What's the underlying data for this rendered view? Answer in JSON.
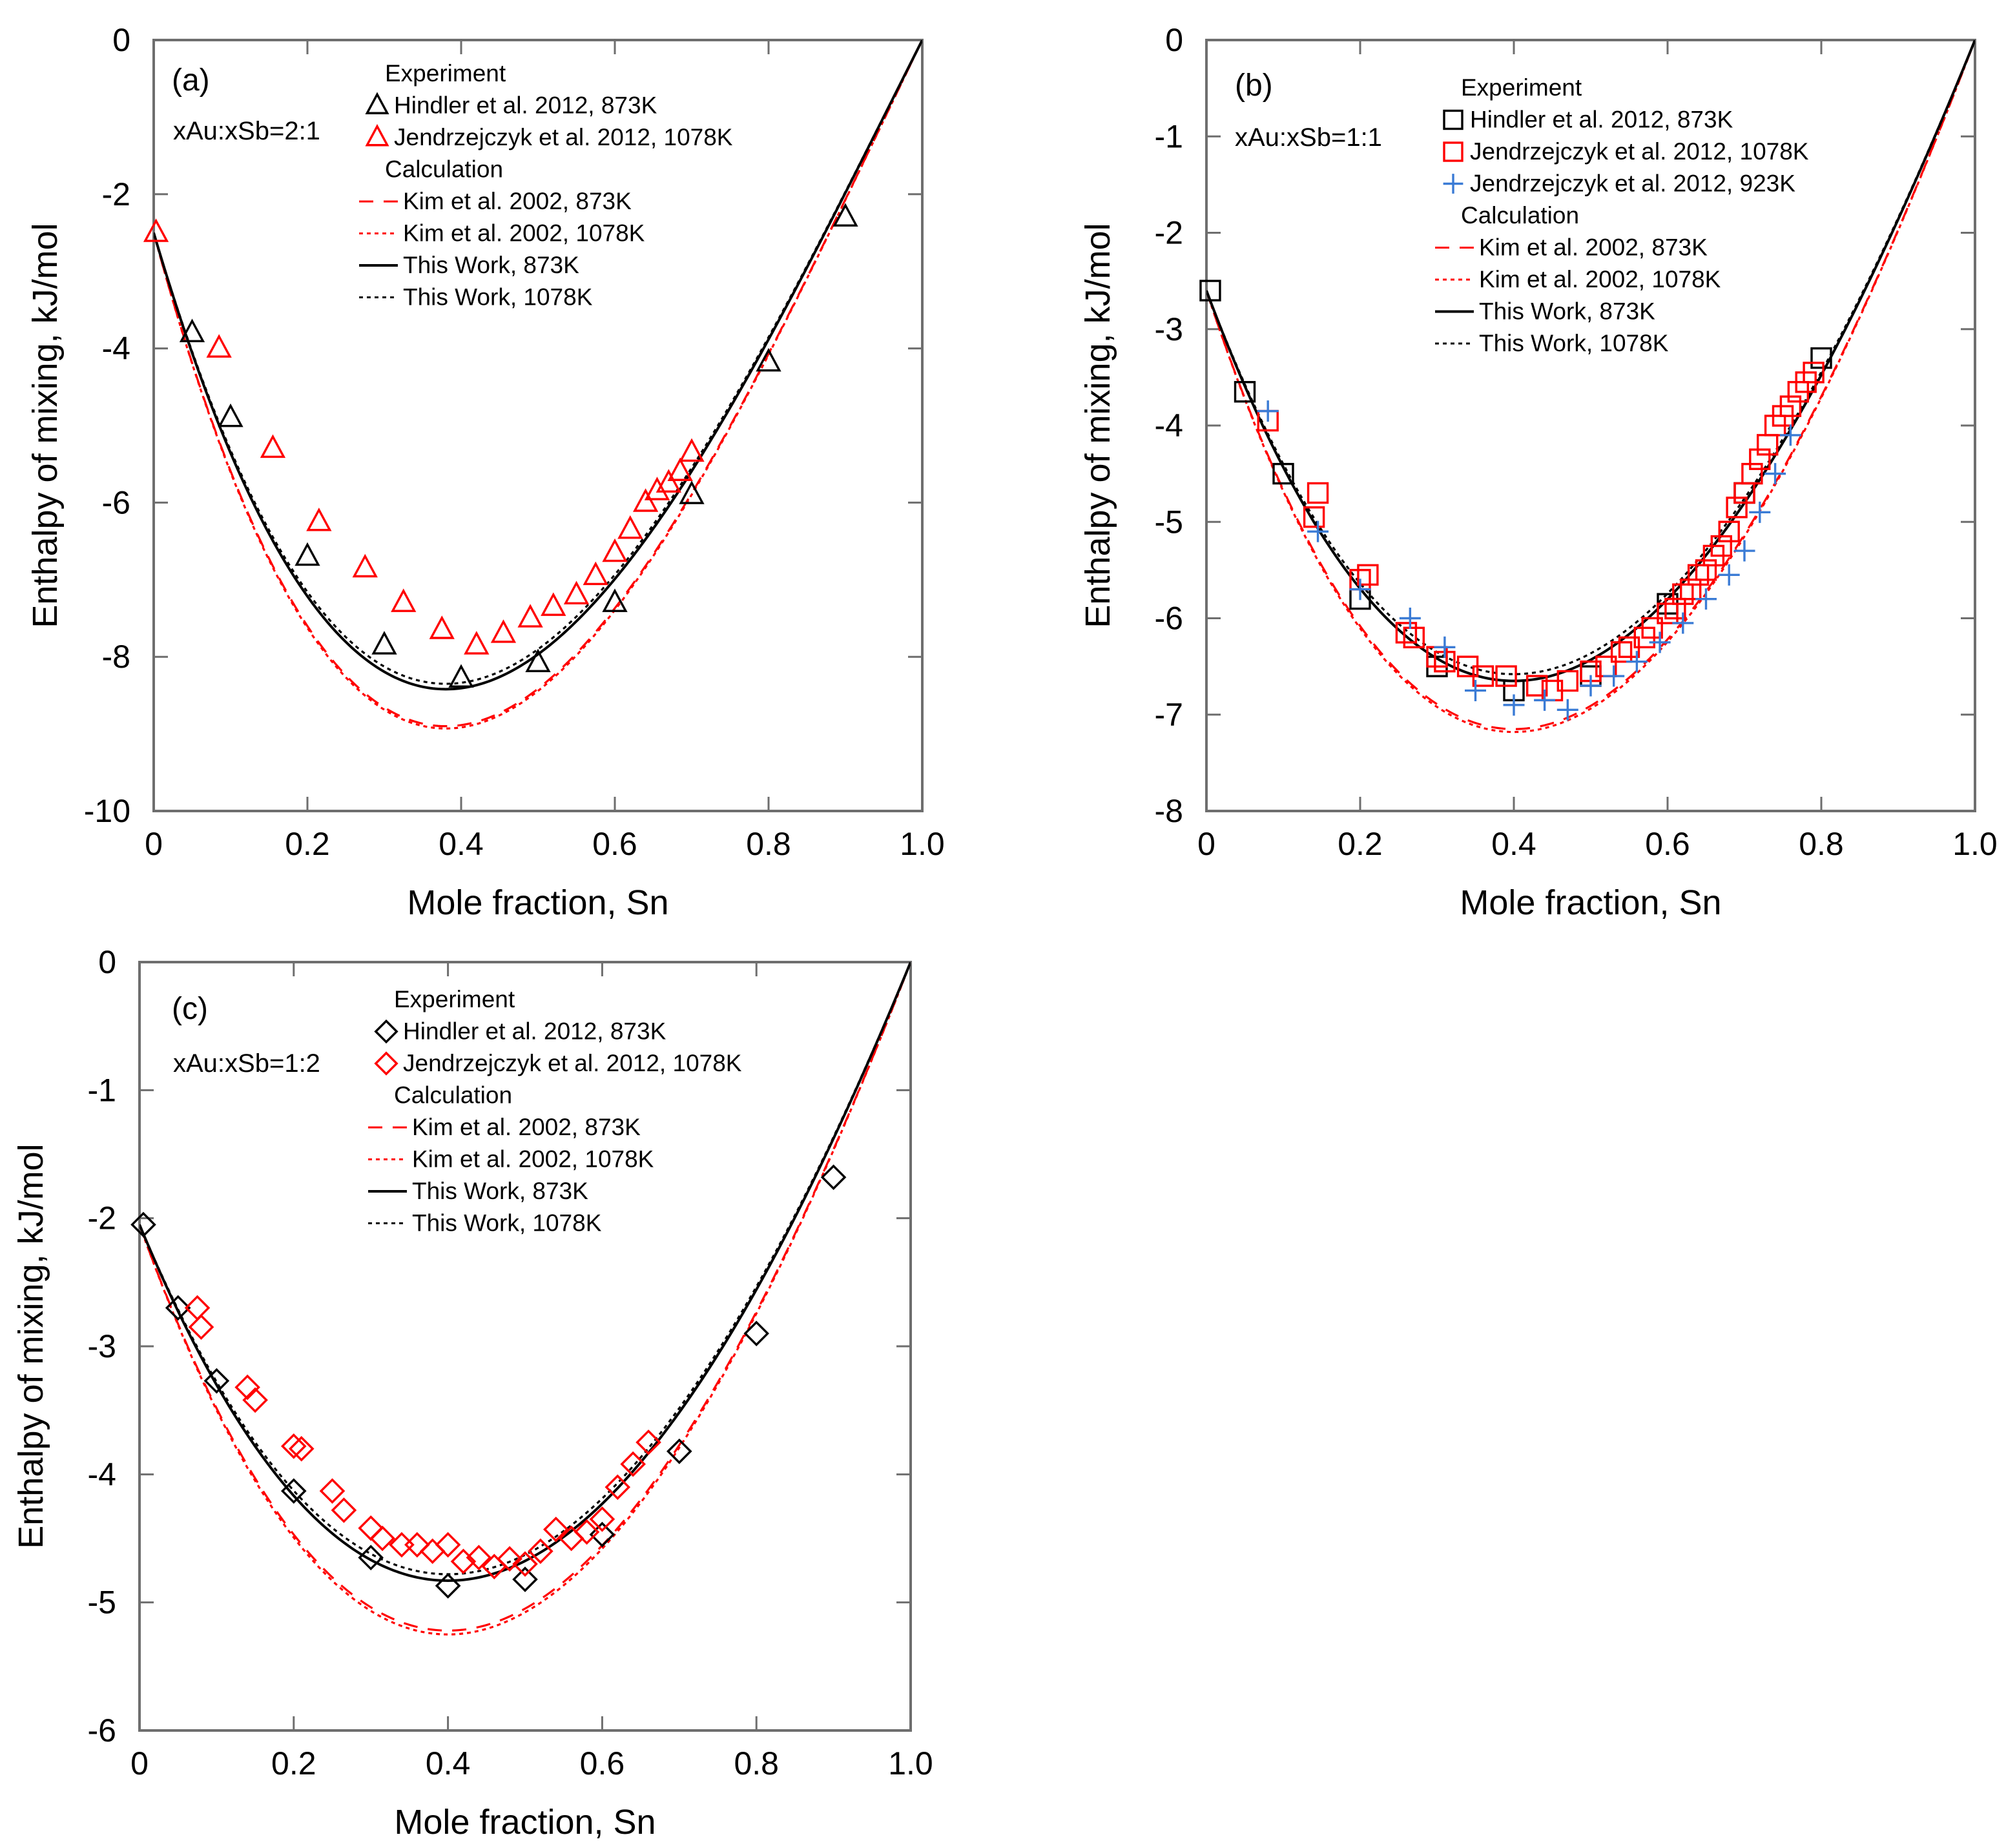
{
  "chart_data": [
    {
      "type": "scatter",
      "panel": "(a)",
      "ratio": "xAu:xSb=2:1",
      "xlabel": "Mole fraction, Sn",
      "ylabel": "Enthalpy of mixing, kJ/mol",
      "xlim": [
        0,
        1.0
      ],
      "ylim": [
        -10,
        0
      ],
      "xticks": [
        0,
        0.2,
        0.4,
        0.6,
        0.8,
        1.0
      ],
      "xtick_labels": [
        "0",
        "0.2",
        "0.4",
        "0.6",
        "0.8",
        "1.0"
      ],
      "yticks": [
        0,
        -2,
        -4,
        -6,
        -8,
        -10
      ],
      "ytick_labels": [
        "0",
        "-2",
        "-4",
        "-6",
        "-8",
        "-10"
      ],
      "legend_headers": [
        "Experiment",
        "Calculation"
      ],
      "series": [
        {
          "name": "Hindler et al. 2012, 873K",
          "kind": "points",
          "marker": "triangle",
          "color": "#000000",
          "x": [
            0.05,
            0.1,
            0.2,
            0.3,
            0.4,
            0.5,
            0.6,
            0.7,
            0.8,
            0.9
          ],
          "y": [
            -3.8,
            -4.9,
            -6.7,
            -7.85,
            -8.28,
            -8.08,
            -7.3,
            -5.9,
            -4.18,
            -2.3
          ]
        },
        {
          "name": "Jendrzejczyk et al. 2012, 1078K",
          "kind": "points",
          "marker": "triangle",
          "color": "#ff0000",
          "x": [
            0.003,
            0.085,
            0.155,
            0.215,
            0.275,
            0.325,
            0.375,
            0.42,
            0.455,
            0.49,
            0.52,
            0.55,
            0.575,
            0.6,
            0.62,
            0.64,
            0.655,
            0.67,
            0.685,
            0.7
          ],
          "y": [
            -2.5,
            -4.0,
            -5.3,
            -6.25,
            -6.85,
            -7.3,
            -7.65,
            -7.85,
            -7.7,
            -7.5,
            -7.35,
            -7.2,
            -6.95,
            -6.65,
            -6.35,
            -6.0,
            -5.85,
            -5.75,
            -5.6,
            -5.35
          ]
        },
        {
          "name": "Kim et al. 2002, 873K",
          "kind": "line",
          "style": "dash",
          "color": "#ff0000",
          "h0": -2.5,
          "xmin": 0.38,
          "hmin": -8.9,
          "power": 2.0
        },
        {
          "name": "Kim et al. 2002, 1078K",
          "kind": "line",
          "style": "dot",
          "color": "#ff0000",
          "h0": -2.5,
          "xmin": 0.38,
          "hmin": -8.93,
          "power": 2.0
        },
        {
          "name": "This Work, 873K",
          "kind": "line",
          "style": "solid",
          "color": "#000000",
          "h0": -2.5,
          "xmin": 0.38,
          "hmin": -8.42,
          "power": 2.1
        },
        {
          "name": "This Work, 1078K",
          "kind": "line",
          "style": "dot",
          "color": "#000000",
          "h0": -2.5,
          "xmin": 0.38,
          "hmin": -8.35,
          "power": 2.1
        }
      ]
    },
    {
      "type": "scatter",
      "panel": "(b)",
      "ratio": "xAu:xSb=1:1",
      "xlabel": "Mole fraction, Sn",
      "ylabel": "Enthalpy of mixing, kJ/mol",
      "xlim": [
        0,
        1.0
      ],
      "ylim": [
        -8,
        0
      ],
      "xticks": [
        0,
        0.2,
        0.4,
        0.6,
        0.8,
        1.0
      ],
      "xtick_labels": [
        "0",
        "0.2",
        "0.4",
        "0.6",
        "0.8",
        "1.0"
      ],
      "yticks": [
        0,
        -1,
        -2,
        -3,
        -4,
        -5,
        -6,
        -7,
        -8
      ],
      "ytick_labels": [
        "0",
        "-1",
        "-2",
        "-3",
        "-4",
        "-5",
        "-6",
        "-7",
        "-8"
      ],
      "legend_headers": [
        "Experiment",
        "Calculation"
      ],
      "series": [
        {
          "name": "Hindler et al. 2012, 873K",
          "kind": "points",
          "marker": "square",
          "color": "#000000",
          "x": [
            0.005,
            0.05,
            0.1,
            0.2,
            0.3,
            0.4,
            0.5,
            0.6,
            0.7,
            0.8
          ],
          "y": [
            -2.6,
            -3.65,
            -4.5,
            -5.8,
            -6.5,
            -6.75,
            -6.6,
            -5.85,
            -4.7,
            -3.3
          ]
        },
        {
          "name": "Jendrzejczyk et al. 2012, 1078K",
          "kind": "points",
          "marker": "square",
          "color": "#ff0000",
          "x": [
            0.08,
            0.14,
            0.145,
            0.2,
            0.21,
            0.26,
            0.27,
            0.3,
            0.31,
            0.34,
            0.36,
            0.39,
            0.43,
            0.45,
            0.47,
            0.5,
            0.52,
            0.54,
            0.55,
            0.57,
            0.58,
            0.6,
            0.61,
            0.62,
            0.63,
            0.64,
            0.65,
            0.66,
            0.67,
            0.68,
            0.69,
            0.7,
            0.71,
            0.72,
            0.73,
            0.74,
            0.75,
            0.76,
            0.77,
            0.78,
            0.79
          ],
          "y": [
            -3.95,
            -4.95,
            -4.7,
            -5.6,
            -5.55,
            -6.15,
            -6.2,
            -6.4,
            -6.45,
            -6.5,
            -6.6,
            -6.6,
            -6.7,
            -6.75,
            -6.65,
            -6.55,
            -6.5,
            -6.35,
            -6.3,
            -6.2,
            -6.1,
            -5.95,
            -5.9,
            -5.75,
            -5.7,
            -5.55,
            -5.5,
            -5.35,
            -5.25,
            -5.1,
            -4.85,
            -4.7,
            -4.5,
            -4.35,
            -4.2,
            -4.0,
            -3.9,
            -3.8,
            -3.65,
            -3.55,
            -3.45
          ]
        },
        {
          "name": "Jendrzejczyk et al. 2012, 923K",
          "kind": "points",
          "marker": "plus",
          "color": "#3a7bd5",
          "x": [
            0.08,
            0.145,
            0.2,
            0.265,
            0.31,
            0.35,
            0.4,
            0.44,
            0.47,
            0.5,
            0.53,
            0.56,
            0.59,
            0.62,
            0.65,
            0.68,
            0.7,
            0.72,
            0.74,
            0.76
          ],
          "y": [
            -3.85,
            -5.1,
            -5.7,
            -6.0,
            -6.3,
            -6.75,
            -6.9,
            -6.85,
            -6.95,
            -6.7,
            -6.6,
            -6.45,
            -6.25,
            -6.05,
            -5.8,
            -5.55,
            -5.3,
            -4.9,
            -4.5,
            -4.1
          ]
        },
        {
          "name": "Kim et al. 2002, 873K",
          "kind": "line",
          "style": "dash",
          "color": "#ff0000",
          "h0": -2.6,
          "xmin": 0.4,
          "hmin": -7.15,
          "power": 2.0
        },
        {
          "name": "Kim et al. 2002, 1078K",
          "kind": "line",
          "style": "dot",
          "color": "#ff0000",
          "h0": -2.6,
          "xmin": 0.4,
          "hmin": -7.18,
          "power": 2.0
        },
        {
          "name": "This Work, 873K",
          "kind": "line",
          "style": "solid",
          "color": "#000000",
          "h0": -2.6,
          "xmin": 0.4,
          "hmin": -6.65,
          "power": 2.1
        },
        {
          "name": "This Work, 1078K",
          "kind": "line",
          "style": "dot",
          "color": "#000000",
          "h0": -2.6,
          "xmin": 0.4,
          "hmin": -6.58,
          "power": 2.1
        }
      ]
    },
    {
      "type": "scatter",
      "panel": "(c)",
      "ratio": "xAu:xSb=1:2",
      "xlabel": "Mole fraction, Sn",
      "ylabel": "Enthalpy of mixing, kJ/mol",
      "xlim": [
        0,
        1.0
      ],
      "ylim": [
        -6,
        0
      ],
      "xticks": [
        0,
        0.2,
        0.4,
        0.6,
        0.8,
        1.0
      ],
      "xtick_labels": [
        "0",
        "0.2",
        "0.4",
        "0.6",
        "0.8",
        "1.0"
      ],
      "yticks": [
        0,
        -1,
        -2,
        -3,
        -4,
        -5,
        -6
      ],
      "ytick_labels": [
        "0",
        "-1",
        "-2",
        "-3",
        "-4",
        "-5",
        "-6"
      ],
      "legend_headers": [
        "Experiment",
        "Calculation"
      ],
      "series": [
        {
          "name": "Hindler et al. 2012, 873K",
          "kind": "points",
          "marker": "diamond",
          "color": "#000000",
          "x": [
            0.005,
            0.05,
            0.1,
            0.2,
            0.3,
            0.4,
            0.5,
            0.6,
            0.7,
            0.8,
            0.9
          ],
          "y": [
            -2.05,
            -2.7,
            -3.27,
            -4.13,
            -4.65,
            -4.87,
            -4.82,
            -4.47,
            -3.82,
            -2.9,
            -1.68
          ]
        },
        {
          "name": "Jendrzejczyk et al. 2012, 1078K",
          "kind": "points",
          "marker": "diamond",
          "color": "#ff0000",
          "x": [
            0.075,
            0.08,
            0.14,
            0.15,
            0.2,
            0.21,
            0.25,
            0.265,
            0.3,
            0.315,
            0.34,
            0.36,
            0.38,
            0.4,
            0.42,
            0.44,
            0.46,
            0.48,
            0.5,
            0.52,
            0.54,
            0.56,
            0.58,
            0.6,
            0.62,
            0.64,
            0.66
          ],
          "y": [
            -2.7,
            -2.85,
            -3.32,
            -3.42,
            -3.78,
            -3.8,
            -4.13,
            -4.28,
            -4.42,
            -4.5,
            -4.55,
            -4.55,
            -4.6,
            -4.55,
            -4.68,
            -4.65,
            -4.72,
            -4.66,
            -4.7,
            -4.6,
            -4.43,
            -4.5,
            -4.45,
            -4.35,
            -4.1,
            -3.92,
            -3.75
          ]
        },
        {
          "name": "Kim et al. 2002, 873K",
          "kind": "line",
          "style": "dash",
          "color": "#ff0000",
          "h0": -2.05,
          "xmin": 0.4,
          "hmin": -5.22,
          "power": 2.0
        },
        {
          "name": "Kim et al. 2002, 1078K",
          "kind": "line",
          "style": "dot",
          "color": "#ff0000",
          "h0": -2.05,
          "xmin": 0.4,
          "hmin": -5.25,
          "power": 2.0
        },
        {
          "name": "This Work, 873K",
          "kind": "line",
          "style": "solid",
          "color": "#000000",
          "h0": -2.05,
          "xmin": 0.4,
          "hmin": -4.83,
          "power": 2.1
        },
        {
          "name": "This Work, 1078K",
          "kind": "line",
          "style": "dot",
          "color": "#000000",
          "h0": -2.05,
          "xmin": 0.4,
          "hmin": -4.78,
          "power": 2.1
        }
      ]
    }
  ]
}
